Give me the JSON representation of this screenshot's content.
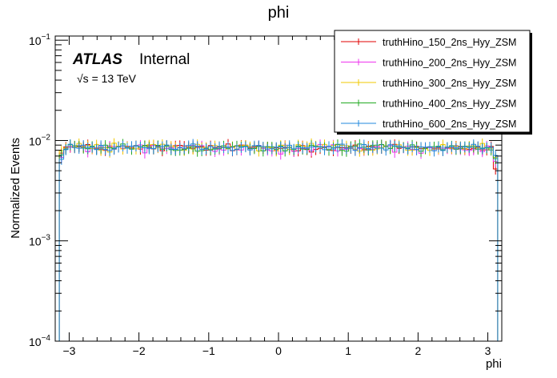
{
  "chart_data": {
    "type": "line",
    "style": "step-histogram",
    "title": "phi",
    "xlabel": "phi",
    "ylabel": "Normalized Events",
    "xlim": [
      -3.2,
      3.2
    ],
    "ylim": [
      0.0001,
      0.11
    ],
    "yscale": "log",
    "x_ticks": [
      "−3",
      "−2",
      "−1",
      "0",
      "1",
      "2",
      "3"
    ],
    "x_tick_values": [
      -3,
      -2,
      -1,
      0,
      1,
      2,
      3
    ],
    "y_ticks": [
      {
        "value": 0.0001,
        "base": "10",
        "exp": "−4"
      },
      {
        "value": 0.001,
        "base": "10",
        "exp": "−3"
      },
      {
        "value": 0.01,
        "base": "10",
        "exp": "−2"
      },
      {
        "value": 0.1,
        "base": "10",
        "exp": "−1"
      }
    ],
    "legend_position": "top-right",
    "bins": 100,
    "nominal_value": 0.0085,
    "series": [
      {
        "name": "truthHino_150_2ns_Hyy_ZSM",
        "color": "#e00000",
        "mean": 0.0085,
        "spread": 0.0011,
        "edge_low": 0.0075,
        "edge_high": 0.0052
      },
      {
        "name": "truthHino_200_2ns_Hyy_ZSM",
        "color": "#ee33ee",
        "mean": 0.0084,
        "spread": 0.0012,
        "edge_low": 0.0068,
        "edge_high": 0.0062
      },
      {
        "name": "truthHino_300_2ns_Hyy_ZSM",
        "color": "#f0c800",
        "mean": 0.0086,
        "spread": 0.0011,
        "edge_low": 0.0079,
        "edge_high": 0.0068
      },
      {
        "name": "truthHino_400_2ns_Hyy_ZSM",
        "color": "#22aa22",
        "mean": 0.0085,
        "spread": 0.0011,
        "edge_low": 0.0072,
        "edge_high": 0.0066
      },
      {
        "name": "truthHino_600_2ns_Hyy_ZSM",
        "color": "#2288dd",
        "mean": 0.0085,
        "spread": 0.001,
        "edge_low": 0.0065,
        "edge_high": 0.0071
      }
    ],
    "annotations": {
      "experiment": "ATLAS",
      "status": "Internal",
      "energy": "√s = 13 TeV"
    }
  }
}
